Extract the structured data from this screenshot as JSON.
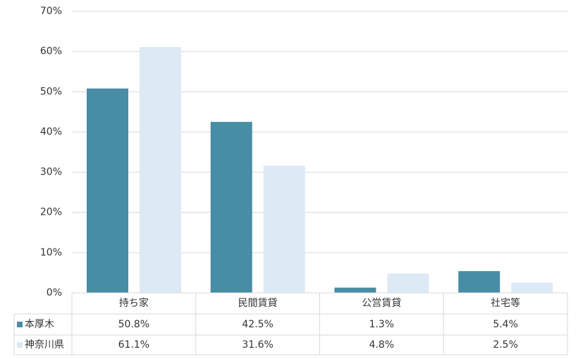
{
  "chart_data": {
    "type": "bar",
    "categories": [
      "持ち家",
      "民間賃貸",
      "公営賃貸",
      "社宅等"
    ],
    "series": [
      {
        "name": "本厚木",
        "color": "#468da5",
        "values": [
          50.8,
          42.5,
          1.3,
          5.4
        ],
        "value_labels": [
          "50.8%",
          "42.5%",
          "1.3%",
          "5.4%"
        ]
      },
      {
        "name": "神奈川県",
        "color": "#dde9f5",
        "values": [
          61.1,
          31.6,
          4.8,
          2.5
        ],
        "value_labels": [
          "61.1%",
          "31.6%",
          "4.8%",
          "2.5%"
        ]
      }
    ],
    "ylim": [
      0,
      70
    ],
    "yticks": [
      {
        "value": 0,
        "label": "0%"
      },
      {
        "value": 10,
        "label": "10%"
      },
      {
        "value": 20,
        "label": "20%"
      },
      {
        "value": 30,
        "label": "30%"
      },
      {
        "value": 40,
        "label": "40%"
      },
      {
        "value": 50,
        "label": "50%"
      },
      {
        "value": 60,
        "label": "60%"
      },
      {
        "value": 70,
        "label": "70%"
      }
    ],
    "grid": true
  }
}
